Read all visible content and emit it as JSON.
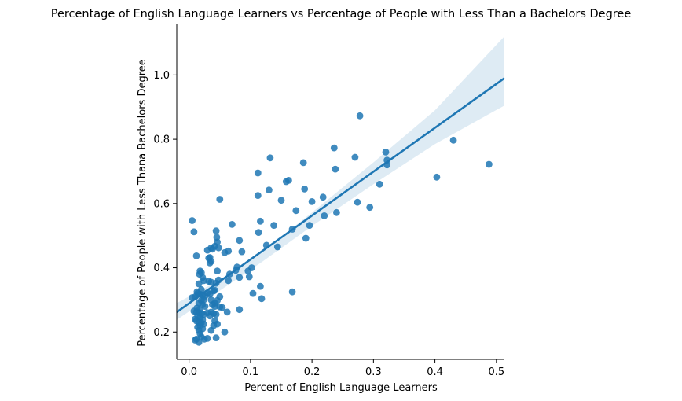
{
  "chart_data": {
    "type": "scatter",
    "title": "Percentage of English Language Learners vs Percentage of People with Less Than a Bachelors Degree",
    "xlabel": "Percent of English Language Learners",
    "ylabel": "Percentage of People with Less Thana Bachelors Degree",
    "xlim": [
      -0.02,
      0.513
    ],
    "ylim": [
      0.115,
      1.16
    ],
    "xticks": [
      0.0,
      0.1,
      0.2,
      0.3,
      0.4,
      0.5
    ],
    "xtick_labels": [
      "0.0",
      "0.1",
      "0.2",
      "0.3",
      "0.4",
      "0.5"
    ],
    "yticks": [
      0.2,
      0.4,
      0.6,
      0.8,
      1.0
    ],
    "ytick_labels": [
      "0.2",
      "0.4",
      "0.6",
      "0.8",
      "1.0"
    ],
    "grid": false,
    "colors": {
      "points": "#1f77b4",
      "line": "#1f77b4",
      "confidence_band": "#1f77b4"
    },
    "regression": {
      "x": [
        -0.02,
        0.513
      ],
      "y": [
        0.262,
        0.99
      ]
    },
    "confidence_band": {
      "x": [
        -0.02,
        0.05,
        0.12,
        0.2,
        0.3,
        0.4,
        0.513
      ],
      "upper": [
        0.29,
        0.363,
        0.452,
        0.572,
        0.728,
        0.89,
        1.12
      ],
      "lower": [
        0.238,
        0.329,
        0.42,
        0.53,
        0.66,
        0.785,
        0.905
      ]
    },
    "points": [
      [
        0.005,
        0.547
      ],
      [
        0.008,
        0.512
      ],
      [
        0.012,
        0.437
      ],
      [
        0.005,
        0.307
      ],
      [
        0.01,
        0.31
      ],
      [
        0.013,
        0.325
      ],
      [
        0.017,
        0.38
      ],
      [
        0.018,
        0.39
      ],
      [
        0.02,
        0.385
      ],
      [
        0.022,
        0.37
      ],
      [
        0.024,
        0.36
      ],
      [
        0.016,
        0.35
      ],
      [
        0.02,
        0.332
      ],
      [
        0.014,
        0.32
      ],
      [
        0.018,
        0.318
      ],
      [
        0.022,
        0.315
      ],
      [
        0.026,
        0.312
      ],
      [
        0.024,
        0.3
      ],
      [
        0.02,
        0.298
      ],
      [
        0.016,
        0.29
      ],
      [
        0.022,
        0.285
      ],
      [
        0.026,
        0.28
      ],
      [
        0.013,
        0.275
      ],
      [
        0.017,
        0.27
      ],
      [
        0.008,
        0.265
      ],
      [
        0.012,
        0.262
      ],
      [
        0.016,
        0.26
      ],
      [
        0.02,
        0.258
      ],
      [
        0.024,
        0.254
      ],
      [
        0.014,
        0.25
      ],
      [
        0.018,
        0.245
      ],
      [
        0.01,
        0.24
      ],
      [
        0.022,
        0.238
      ],
      [
        0.012,
        0.235
      ],
      [
        0.016,
        0.23
      ],
      [
        0.02,
        0.228
      ],
      [
        0.024,
        0.225
      ],
      [
        0.018,
        0.22
      ],
      [
        0.014,
        0.215
      ],
      [
        0.022,
        0.21
      ],
      [
        0.016,
        0.205
      ],
      [
        0.018,
        0.195
      ],
      [
        0.02,
        0.185
      ],
      [
        0.012,
        0.178
      ],
      [
        0.01,
        0.175
      ],
      [
        0.016,
        0.168
      ],
      [
        0.025,
        0.178
      ],
      [
        0.03,
        0.455
      ],
      [
        0.032,
        0.43
      ],
      [
        0.034,
        0.432
      ],
      [
        0.036,
        0.42
      ],
      [
        0.034,
        0.415
      ],
      [
        0.038,
        0.458
      ],
      [
        0.036,
        0.462
      ],
      [
        0.042,
        0.467
      ],
      [
        0.046,
        0.48
      ],
      [
        0.045,
        0.495
      ],
      [
        0.044,
        0.515
      ],
      [
        0.048,
        0.462
      ],
      [
        0.04,
        0.328
      ],
      [
        0.042,
        0.33
      ],
      [
        0.036,
        0.355
      ],
      [
        0.032,
        0.358
      ],
      [
        0.044,
        0.352
      ],
      [
        0.048,
        0.362
      ],
      [
        0.046,
        0.39
      ],
      [
        0.03,
        0.322
      ],
      [
        0.034,
        0.318
      ],
      [
        0.036,
        0.3
      ],
      [
        0.042,
        0.29
      ],
      [
        0.046,
        0.298
      ],
      [
        0.05,
        0.31
      ],
      [
        0.038,
        0.285
      ],
      [
        0.042,
        0.28
      ],
      [
        0.05,
        0.278
      ],
      [
        0.054,
        0.276
      ],
      [
        0.036,
        0.262
      ],
      [
        0.04,
        0.258
      ],
      [
        0.044,
        0.255
      ],
      [
        0.03,
        0.26
      ],
      [
        0.034,
        0.25
      ],
      [
        0.042,
        0.235
      ],
      [
        0.046,
        0.225
      ],
      [
        0.04,
        0.22
      ],
      [
        0.036,
        0.205
      ],
      [
        0.03,
        0.18
      ],
      [
        0.044,
        0.182
      ],
      [
        0.058,
        0.2
      ],
      [
        0.05,
        0.613
      ],
      [
        0.058,
        0.447
      ],
      [
        0.064,
        0.452
      ],
      [
        0.07,
        0.535
      ],
      [
        0.066,
        0.38
      ],
      [
        0.064,
        0.36
      ],
      [
        0.062,
        0.262
      ],
      [
        0.076,
        0.392
      ],
      [
        0.078,
        0.402
      ],
      [
        0.082,
        0.37
      ],
      [
        0.082,
        0.485
      ],
      [
        0.086,
        0.45
      ],
      [
        0.082,
        0.27
      ],
      [
        0.096,
        0.39
      ],
      [
        0.098,
        0.372
      ],
      [
        0.102,
        0.4
      ],
      [
        0.104,
        0.32
      ],
      [
        0.112,
        0.695
      ],
      [
        0.112,
        0.625
      ],
      [
        0.113,
        0.51
      ],
      [
        0.116,
        0.545
      ],
      [
        0.116,
        0.342
      ],
      [
        0.118,
        0.304
      ],
      [
        0.126,
        0.47
      ],
      [
        0.13,
        0.642
      ],
      [
        0.132,
        0.742
      ],
      [
        0.138,
        0.532
      ],
      [
        0.144,
        0.465
      ],
      [
        0.15,
        0.61
      ],
      [
        0.158,
        0.668
      ],
      [
        0.162,
        0.672
      ],
      [
        0.168,
        0.52
      ],
      [
        0.168,
        0.325
      ],
      [
        0.174,
        0.578
      ],
      [
        0.186,
        0.727
      ],
      [
        0.188,
        0.645
      ],
      [
        0.19,
        0.492
      ],
      [
        0.196,
        0.532
      ],
      [
        0.2,
        0.606
      ],
      [
        0.218,
        0.62
      ],
      [
        0.22,
        0.562
      ],
      [
        0.236,
        0.773
      ],
      [
        0.238,
        0.707
      ],
      [
        0.24,
        0.572
      ],
      [
        0.27,
        0.744
      ],
      [
        0.274,
        0.604
      ],
      [
        0.278,
        0.873
      ],
      [
        0.294,
        0.588
      ],
      [
        0.31,
        0.66
      ],
      [
        0.32,
        0.76
      ],
      [
        0.322,
        0.735
      ],
      [
        0.322,
        0.72
      ],
      [
        0.403,
        0.682
      ],
      [
        0.43,
        0.797
      ],
      [
        0.488,
        0.722
      ]
    ]
  }
}
